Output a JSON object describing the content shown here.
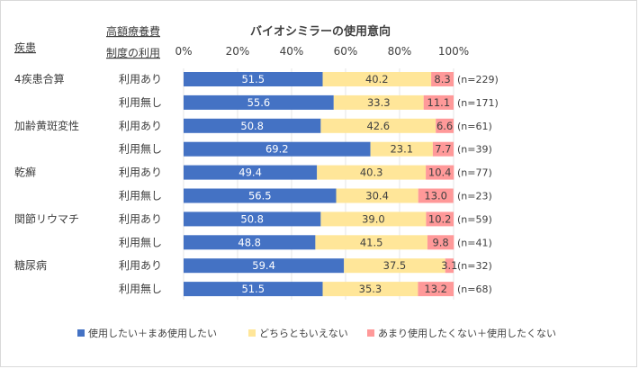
{
  "chart_data": {
    "type": "bar",
    "stacked": true,
    "orientation": "horizontal",
    "title": "バイオシミラーの使用意向",
    "col_header_disease": "疾患",
    "col_header_system_line1": "高額療養費",
    "col_header_system_line2": "制度の利用",
    "xlim": [
      0,
      100
    ],
    "x_ticks": [
      "0%",
      "20%",
      "40%",
      "60%",
      "80%",
      "100%"
    ],
    "grid": true,
    "legend_position": "bottom",
    "series": [
      {
        "name": "使用したい＋まあ使用したい",
        "color": "#4472c4"
      },
      {
        "name": "どちらともいえない",
        "color": "#ffe699"
      },
      {
        "name": "あまり使用したくない＋使用したくない",
        "color": "#ff9999"
      }
    ],
    "rows": [
      {
        "disease": "4疾患合算",
        "usage": "利用あり",
        "values": [
          51.5,
          40.2,
          8.3
        ],
        "labels": [
          "51.5",
          "40.2",
          "8.3"
        ],
        "n": "(n=229)"
      },
      {
        "disease": "",
        "usage": "利用無し",
        "values": [
          55.6,
          33.3,
          11.1
        ],
        "labels": [
          "55.6",
          "33.3",
          "11.1"
        ],
        "n": "(n=171)"
      },
      {
        "disease": "加齢黄斑変性",
        "usage": "利用あり",
        "values": [
          50.8,
          42.6,
          6.6
        ],
        "labels": [
          "50.8",
          "42.6",
          "6.6"
        ],
        "n": "(n=61)"
      },
      {
        "disease": "",
        "usage": "利用無し",
        "values": [
          69.2,
          23.1,
          7.7
        ],
        "labels": [
          "69.2",
          "23.1",
          "7.7"
        ],
        "n": "(n=39)"
      },
      {
        "disease": "乾癬",
        "usage": "利用あり",
        "values": [
          49.4,
          40.3,
          10.4
        ],
        "labels": [
          "49.4",
          "40.3",
          "10.4"
        ],
        "n": "(n=77)"
      },
      {
        "disease": "",
        "usage": "利用無し",
        "values": [
          56.5,
          30.4,
          13.0
        ],
        "labels": [
          "56.5",
          "30.4",
          "13.0"
        ],
        "n": "(n=23)"
      },
      {
        "disease": "関節リウマチ",
        "usage": "利用あり",
        "values": [
          50.8,
          39.0,
          10.2
        ],
        "labels": [
          "50.8",
          "39.0",
          "10.2"
        ],
        "n": "(n=59)"
      },
      {
        "disease": "",
        "usage": "利用無し",
        "values": [
          48.8,
          41.5,
          9.8
        ],
        "labels": [
          "48.8",
          "41.5",
          "9.8"
        ],
        "n": "(n=41)"
      },
      {
        "disease": "糖尿病",
        "usage": "利用あり",
        "values": [
          59.4,
          37.5,
          3.1
        ],
        "labels": [
          "59.4",
          "37.5",
          "3.1"
        ],
        "n": "(n=32)"
      },
      {
        "disease": "",
        "usage": "利用無し",
        "values": [
          51.5,
          35.3,
          13.2
        ],
        "labels": [
          "51.5",
          "35.3",
          "13.2"
        ],
        "n": "(n=68)"
      }
    ]
  }
}
